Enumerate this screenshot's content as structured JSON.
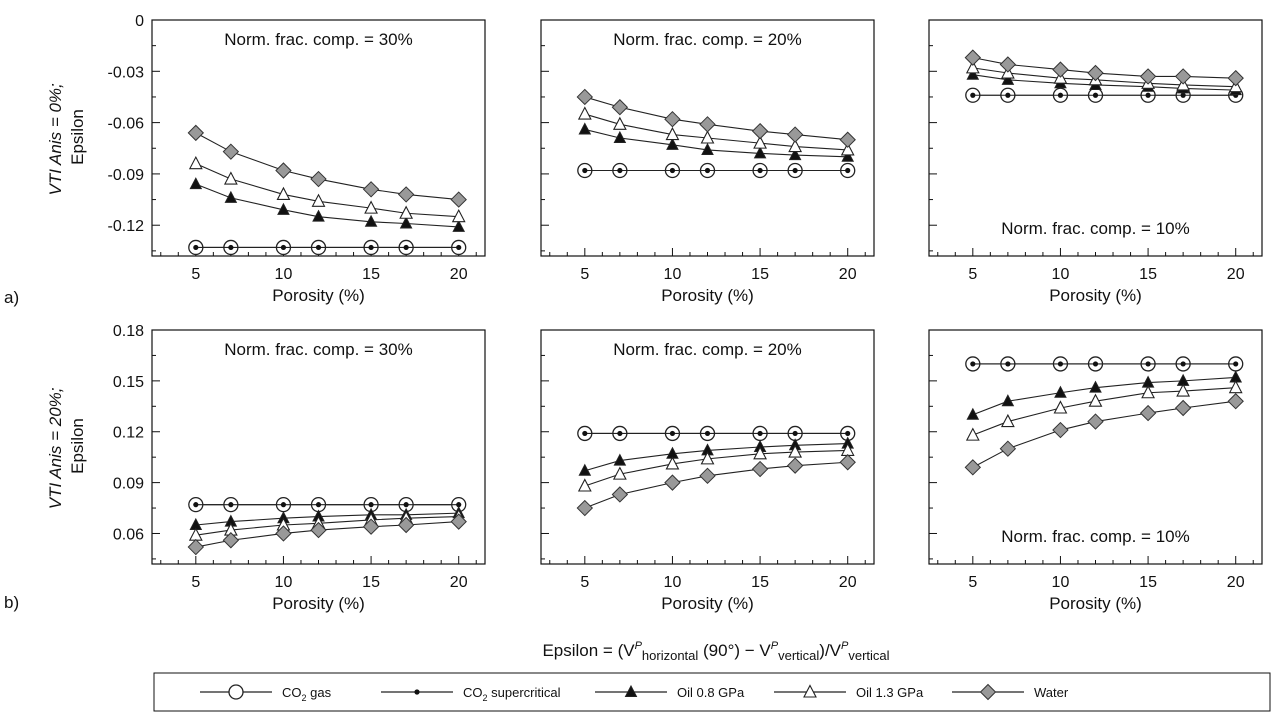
{
  "x_axis_label": "Porosity (%)",
  "row_labels": [
    "a)",
    "b)"
  ],
  "ylabels": [
    {
      "italic": "VTI Anis = 0%;",
      "plain": "Epsilon"
    },
    {
      "italic": "VTI Anis = 20%;",
      "plain": "Epsilon"
    }
  ],
  "formula": {
    "prefix": "Epsilon = (V",
    "p_sup": "P",
    "sub_h": "horizontal",
    "mid1": " (90°) − V",
    "sub_v": "vertical",
    "mid2": ")/V",
    "sub_v2": "vertical"
  },
  "legend": [
    {
      "marker": "open-circle",
      "label": "CO",
      "sub": "2",
      "rest": " gas"
    },
    {
      "marker": "dot",
      "label": "CO",
      "sub": "2",
      "rest": " supercritical"
    },
    {
      "marker": "filled-triangle",
      "label": "Oil 0.8 GPa",
      "sub": "",
      "rest": ""
    },
    {
      "marker": "open-triangle",
      "label": "Oil 1.3 GPa",
      "sub": "",
      "rest": ""
    },
    {
      "marker": "diamond",
      "label": "Water",
      "sub": "",
      "rest": ""
    }
  ],
  "marker_colors": {
    "line": "#222222",
    "diamond_fill": "#999999",
    "triangle_fill": "#111111"
  },
  "chart_data": [
    {
      "type": "line",
      "row": "a",
      "annotation": "Norm. frac. comp. = 30%",
      "annotation_pos": "top",
      "x": [
        5,
        7,
        10,
        12,
        15,
        17,
        20
      ],
      "xticks": [
        5,
        10,
        15,
        20
      ],
      "ylim": [
        -0.138,
        0
      ],
      "yticks": [
        "0",
        "-0.03",
        "-0.06",
        "-0.09",
        "-0.12"
      ],
      "ytick_values": [
        0,
        -0.03,
        -0.06,
        -0.09,
        -0.12
      ],
      "series": [
        {
          "name": "CO2 gas",
          "values": [
            -0.133,
            -0.133,
            -0.133,
            -0.133,
            -0.133,
            -0.133,
            -0.133
          ]
        },
        {
          "name": "CO2 supercritical",
          "values": [
            -0.133,
            -0.133,
            -0.133,
            -0.133,
            -0.133,
            -0.133,
            -0.133
          ]
        },
        {
          "name": "Oil 0.8 GPa",
          "values": [
            -0.096,
            -0.104,
            -0.111,
            -0.115,
            -0.118,
            -0.119,
            -0.121
          ]
        },
        {
          "name": "Oil 1.3 GPa",
          "values": [
            -0.084,
            -0.093,
            -0.102,
            -0.106,
            -0.11,
            -0.113,
            -0.115
          ]
        },
        {
          "name": "Water",
          "values": [
            -0.066,
            -0.077,
            -0.088,
            -0.093,
            -0.099,
            -0.102,
            -0.105
          ]
        }
      ]
    },
    {
      "type": "line",
      "row": "a",
      "annotation": "Norm. frac. comp. = 20%",
      "annotation_pos": "top",
      "x": [
        5,
        7,
        10,
        12,
        15,
        17,
        20
      ],
      "xticks": [
        5,
        10,
        15,
        20
      ],
      "ylim": [
        -0.138,
        0
      ],
      "yticks": [],
      "ytick_values": [
        0,
        -0.03,
        -0.06,
        -0.09,
        -0.12
      ],
      "series": [
        {
          "name": "CO2 gas",
          "values": [
            -0.088,
            -0.088,
            -0.088,
            -0.088,
            -0.088,
            -0.088,
            -0.088
          ]
        },
        {
          "name": "CO2 supercritical",
          "values": [
            -0.088,
            -0.088,
            -0.088,
            -0.088,
            -0.088,
            -0.088,
            -0.088
          ]
        },
        {
          "name": "Oil 0.8 GPa",
          "values": [
            -0.064,
            -0.069,
            -0.073,
            -0.076,
            -0.078,
            -0.079,
            -0.08
          ]
        },
        {
          "name": "Oil 1.3 GPa",
          "values": [
            -0.055,
            -0.061,
            -0.067,
            -0.069,
            -0.072,
            -0.074,
            -0.076
          ]
        },
        {
          "name": "Water",
          "values": [
            -0.045,
            -0.051,
            -0.058,
            -0.061,
            -0.065,
            -0.067,
            -0.07
          ]
        }
      ]
    },
    {
      "type": "line",
      "row": "a",
      "annotation": "Norm. frac. comp. = 10%",
      "annotation_pos": "bottom",
      "x": [
        5,
        7,
        10,
        12,
        15,
        17,
        20
      ],
      "xticks": [
        5,
        10,
        15,
        20
      ],
      "ylim": [
        -0.138,
        0
      ],
      "yticks": [],
      "ytick_values": [
        0,
        -0.03,
        -0.06,
        -0.09,
        -0.12
      ],
      "series": [
        {
          "name": "CO2 gas",
          "values": [
            -0.044,
            -0.044,
            -0.044,
            -0.044,
            -0.044,
            -0.044,
            -0.044
          ]
        },
        {
          "name": "CO2 supercritical",
          "values": [
            -0.044,
            -0.044,
            -0.044,
            -0.044,
            -0.044,
            -0.044,
            -0.044
          ]
        },
        {
          "name": "Oil 0.8 GPa",
          "values": [
            -0.032,
            -0.035,
            -0.037,
            -0.038,
            -0.039,
            -0.04,
            -0.041
          ]
        },
        {
          "name": "Oil 1.3 GPa",
          "values": [
            -0.028,
            -0.031,
            -0.034,
            -0.035,
            -0.037,
            -0.038,
            -0.039
          ]
        },
        {
          "name": "Water",
          "values": [
            -0.022,
            -0.026,
            -0.029,
            -0.031,
            -0.033,
            -0.033,
            -0.034
          ]
        }
      ]
    },
    {
      "type": "line",
      "row": "b",
      "annotation": "Norm. frac. comp. = 30%",
      "annotation_pos": "top",
      "x": [
        5,
        7,
        10,
        12,
        15,
        17,
        20
      ],
      "xticks": [
        5,
        10,
        15,
        20
      ],
      "ylim": [
        0.042,
        0.18
      ],
      "yticks": [
        "0.18",
        "0.15",
        "0.12",
        "0.09",
        "0.06"
      ],
      "ytick_values": [
        0.18,
        0.15,
        0.12,
        0.09,
        0.06
      ],
      "series": [
        {
          "name": "CO2 gas",
          "values": [
            0.077,
            0.077,
            0.077,
            0.077,
            0.077,
            0.077,
            0.077
          ]
        },
        {
          "name": "CO2 supercritical",
          "values": [
            0.077,
            0.077,
            0.077,
            0.077,
            0.077,
            0.077,
            0.077
          ]
        },
        {
          "name": "Oil 0.8 GPa",
          "values": [
            0.065,
            0.067,
            0.069,
            0.07,
            0.071,
            0.071,
            0.072
          ]
        },
        {
          "name": "Oil 1.3 GPa",
          "values": [
            0.059,
            0.062,
            0.065,
            0.066,
            0.068,
            0.069,
            0.07
          ]
        },
        {
          "name": "Water",
          "values": [
            0.052,
            0.056,
            0.06,
            0.062,
            0.064,
            0.065,
            0.067
          ]
        }
      ]
    },
    {
      "type": "line",
      "row": "b",
      "annotation": "Norm. frac. comp. = 20%",
      "annotation_pos": "top",
      "x": [
        5,
        7,
        10,
        12,
        15,
        17,
        20
      ],
      "xticks": [
        5,
        10,
        15,
        20
      ],
      "ylim": [
        0.042,
        0.18
      ],
      "yticks": [],
      "ytick_values": [
        0.18,
        0.15,
        0.12,
        0.09,
        0.06
      ],
      "series": [
        {
          "name": "CO2 gas",
          "values": [
            0.119,
            0.119,
            0.119,
            0.119,
            0.119,
            0.119,
            0.119
          ]
        },
        {
          "name": "CO2 supercritical",
          "values": [
            0.119,
            0.119,
            0.119,
            0.119,
            0.119,
            0.119,
            0.119
          ]
        },
        {
          "name": "Oil 0.8 GPa",
          "values": [
            0.097,
            0.103,
            0.107,
            0.109,
            0.111,
            0.112,
            0.113
          ]
        },
        {
          "name": "Oil 1.3 GPa",
          "values": [
            0.088,
            0.095,
            0.101,
            0.104,
            0.107,
            0.108,
            0.109
          ]
        },
        {
          "name": "Water",
          "values": [
            0.075,
            0.083,
            0.09,
            0.094,
            0.098,
            0.1,
            0.102
          ]
        }
      ]
    },
    {
      "type": "line",
      "row": "b",
      "annotation": "Norm. frac. comp. = 10%",
      "annotation_pos": "bottom",
      "x": [
        5,
        7,
        10,
        12,
        15,
        17,
        20
      ],
      "xticks": [
        5,
        10,
        15,
        20
      ],
      "ylim": [
        0.042,
        0.18
      ],
      "yticks": [],
      "ytick_values": [
        0.18,
        0.15,
        0.12,
        0.09,
        0.06
      ],
      "series": [
        {
          "name": "CO2 gas",
          "values": [
            0.16,
            0.16,
            0.16,
            0.16,
            0.16,
            0.16,
            0.16
          ]
        },
        {
          "name": "CO2 supercritical",
          "values": [
            0.16,
            0.16,
            0.16,
            0.16,
            0.16,
            0.16,
            0.16
          ]
        },
        {
          "name": "Oil 0.8 GPa",
          "values": [
            0.13,
            0.138,
            0.143,
            0.146,
            0.149,
            0.15,
            0.152
          ]
        },
        {
          "name": "Oil 1.3 GPa",
          "values": [
            0.118,
            0.126,
            0.134,
            0.138,
            0.143,
            0.144,
            0.146
          ]
        },
        {
          "name": "Water",
          "values": [
            0.099,
            0.11,
            0.121,
            0.126,
            0.131,
            0.134,
            0.138
          ]
        }
      ]
    }
  ]
}
